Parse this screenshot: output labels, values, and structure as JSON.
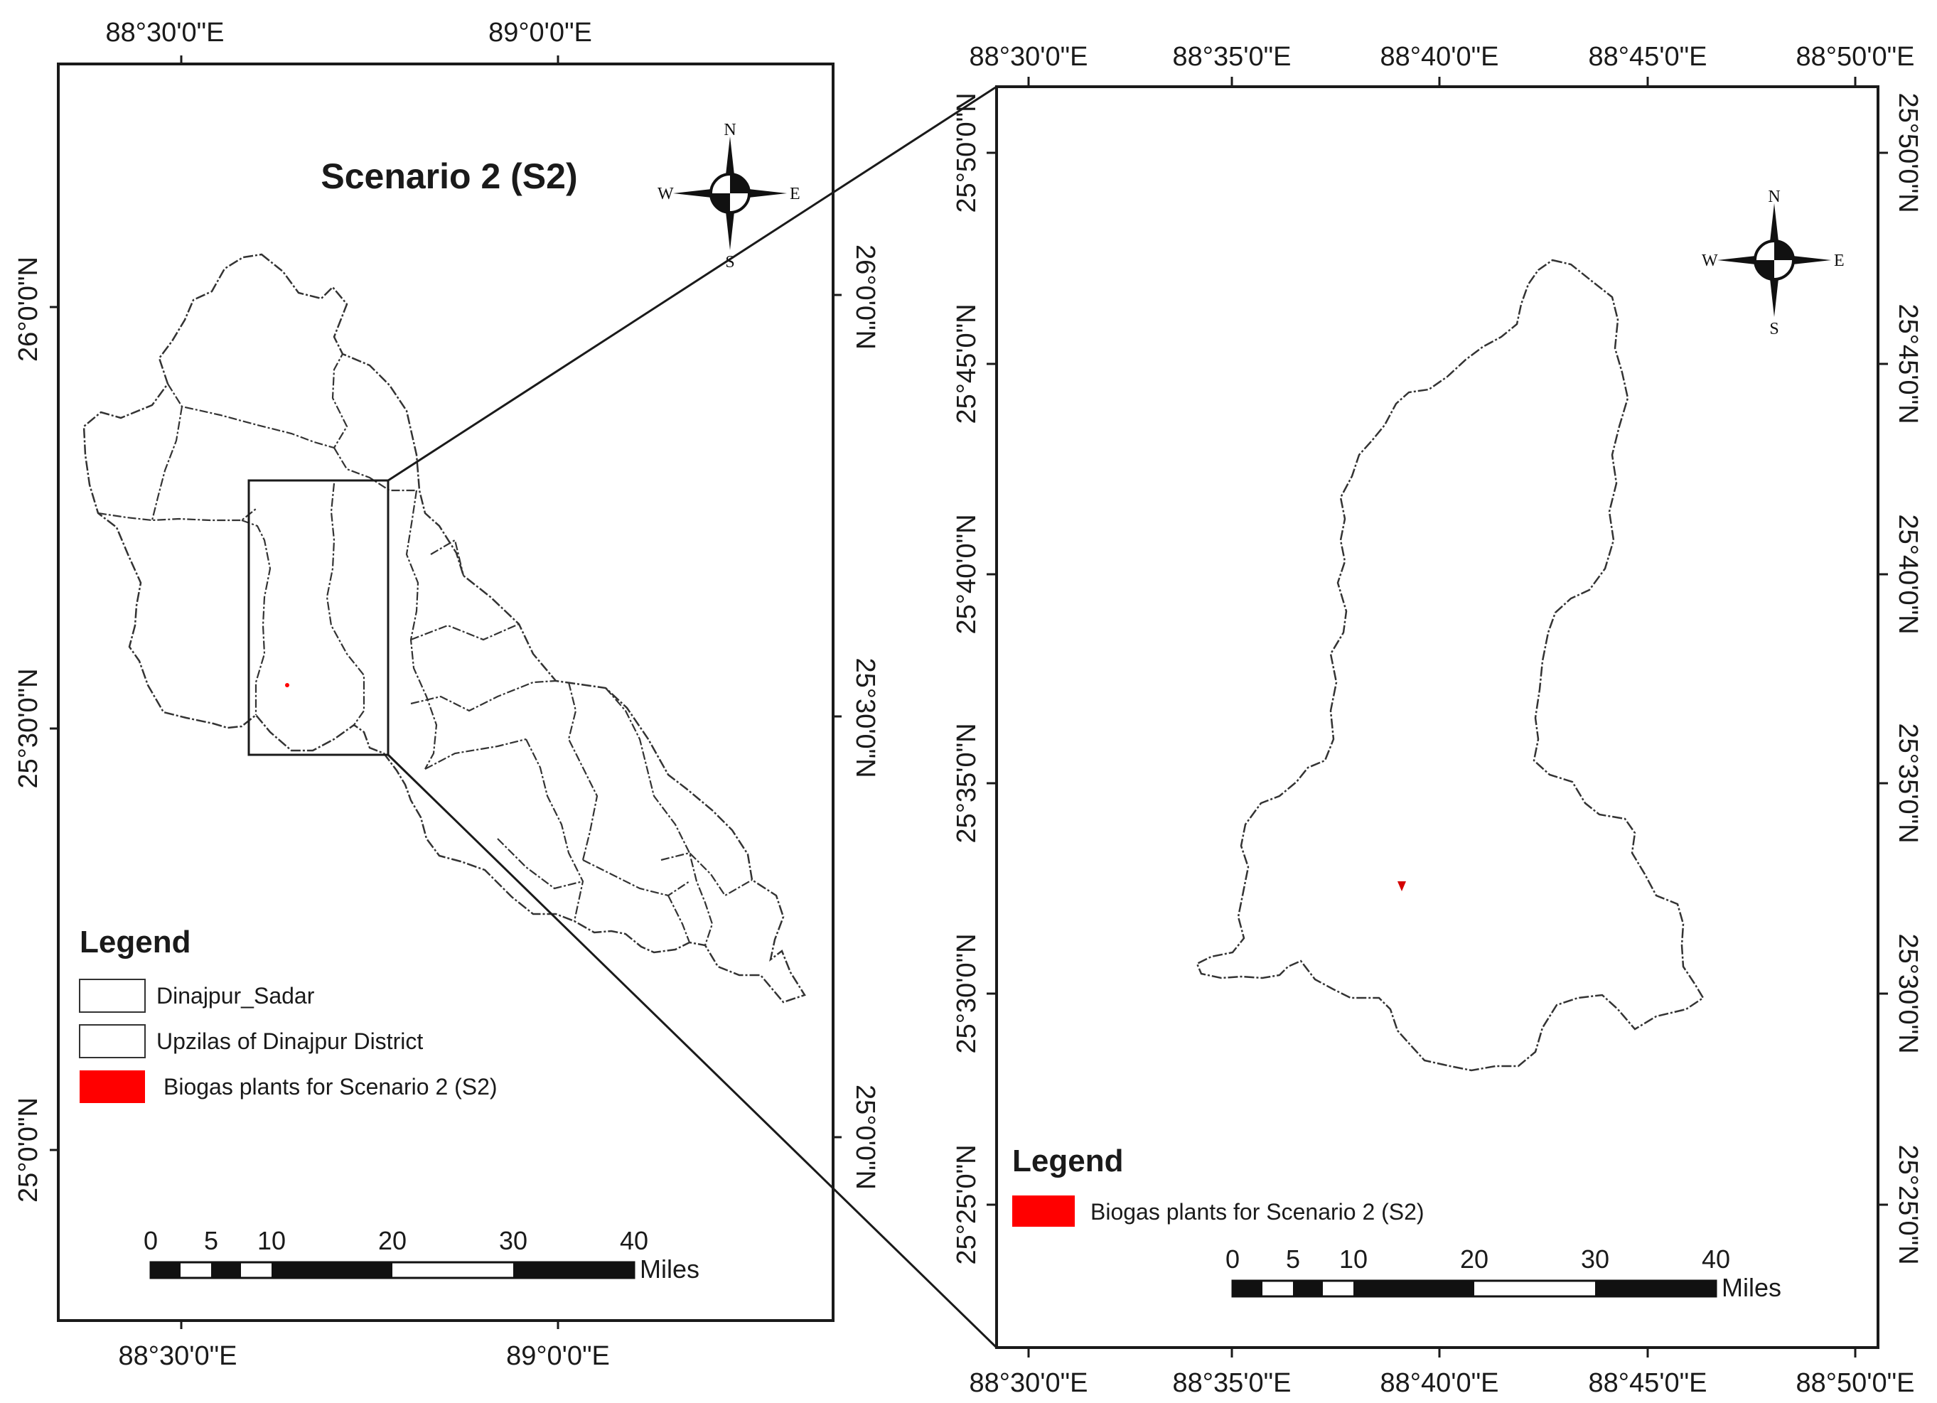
{
  "left_map": {
    "title": "Scenario 2 (S2)",
    "top_lon_labels": [
      "88°30'0\"E",
      "89°0'0\"E"
    ],
    "bottom_lon_labels": [
      "88°30'0\"E",
      "89°0'0\"E"
    ],
    "left_lat_labels": [
      "26°0'0\"N",
      "25°30'0\"N",
      "25°0'0\"N"
    ],
    "right_lat_labels": [
      "26°0'0\"N",
      "25°30'0\"N",
      "25°0'0\"N"
    ],
    "legend": {
      "title": "Legend",
      "items": [
        {
          "label": "Dinajpur_Sadar",
          "symbol": "outline"
        },
        {
          "label": "Upzilas of Dinajpur District",
          "symbol": "outline"
        },
        {
          "label": "Biogas plants for Scenario 2 (S2)",
          "symbol": "fill",
          "color": "#ff0000"
        }
      ]
    },
    "scale_bar": {
      "ticks": [
        "0",
        "5",
        "10",
        "20",
        "30",
        "40"
      ],
      "unit": "Miles"
    },
    "compass": {
      "n": "N",
      "s": "S",
      "e": "E",
      "w": "W"
    }
  },
  "right_map": {
    "top_lon_labels": [
      "88°30'0\"E",
      "88°35'0\"E",
      "88°40'0\"E",
      "88°45'0\"E",
      "88°50'0\"E"
    ],
    "bottom_lon_labels": [
      "88°30'0\"E",
      "88°35'0\"E",
      "88°40'0\"E",
      "88°45'0\"E",
      "88°50'0\"E"
    ],
    "left_lat_labels": [
      "25°50'0\"N",
      "25°45'0\"N",
      "25°40'0\"N",
      "25°35'0\"N",
      "25°30'0\"N",
      "25°25'0\"N"
    ],
    "right_lat_labels": [
      "25°50'0\"N",
      "25°45'0\"N",
      "25°40'0\"N",
      "25°35'0\"N",
      "25°30'0\"N",
      "25°25'0\"N"
    ],
    "legend": {
      "title": "Legend",
      "items": [
        {
          "label": "Biogas plants for Scenario 2 (S2)",
          "symbol": "fill",
          "color": "#ff0000"
        }
      ]
    },
    "scale_bar": {
      "ticks": [
        "0",
        "5",
        "10",
        "20",
        "30",
        "40"
      ],
      "unit": "Miles"
    },
    "compass": {
      "n": "N",
      "s": "S",
      "e": "E",
      "w": "W"
    }
  },
  "colors": {
    "plant": "#ff0000",
    "frame": "#1a1a1a",
    "boundary": "#333333"
  },
  "icons": [
    "compass-rose-icon"
  ]
}
